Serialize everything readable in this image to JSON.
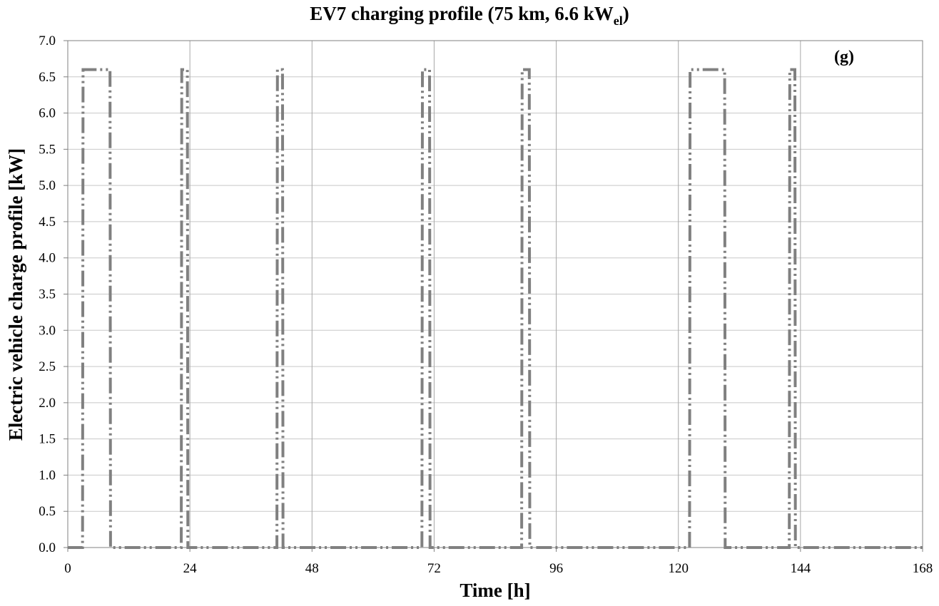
{
  "chart_data": {
    "type": "line",
    "title": "EV7 charging profile (75 km, 6.6 kW",
    "title_subscript": "el",
    "title_suffix": ")",
    "panel_label": "(g)",
    "xlabel": "Time [h]",
    "ylabel": "Electric vehicle charge profile [kW]",
    "xlim": [
      0,
      168
    ],
    "ylim": [
      0,
      7
    ],
    "x_ticks": [
      "0",
      "24",
      "48",
      "72",
      "96",
      "120",
      "144",
      "168"
    ],
    "y_ticks": [
      "0.0",
      "0.5",
      "1.0",
      "1.5",
      "2.0",
      "2.5",
      "3.0",
      "3.5",
      "4.0",
      "4.5",
      "5.0",
      "5.5",
      "6.0",
      "6.5",
      "7.0"
    ],
    "grid": true,
    "line_color": "#808080",
    "series": [
      {
        "x": [
          0,
          2.9,
          3.0,
          8.3,
          8.4,
          22.3,
          22.4,
          23.5,
          23.6,
          41.1,
          41.2,
          42.2,
          42.3,
          69.6,
          69.7,
          71.1,
          71.2,
          89.2,
          89.3,
          90.7,
          90.8,
          122.2,
          122.3,
          129.1,
          129.2,
          141.8,
          141.9,
          142.9,
          143.0,
          168
        ],
        "y": [
          0,
          0,
          6.6,
          6.6,
          0,
          0,
          6.6,
          6.6,
          0,
          0,
          6.6,
          6.6,
          0,
          0,
          6.6,
          6.6,
          0,
          0,
          6.6,
          6.6,
          0,
          0,
          6.6,
          6.6,
          0,
          0,
          6.6,
          6.6,
          0,
          0
        ]
      }
    ]
  }
}
